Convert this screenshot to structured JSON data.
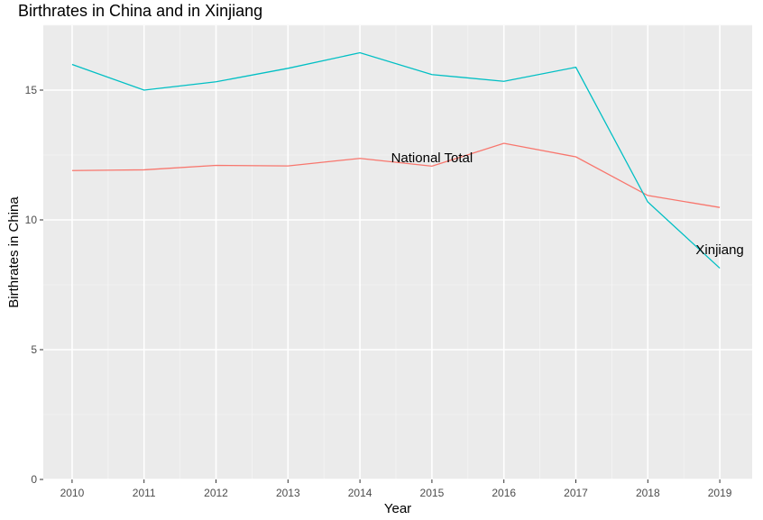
{
  "chart_data": {
    "type": "line",
    "title": "Birthrates in China and in Xinjiang",
    "xlabel": "Year",
    "ylabel": "Birthrates in China",
    "x": [
      2010,
      2011,
      2012,
      2013,
      2014,
      2015,
      2016,
      2017,
      2018,
      2019
    ],
    "xlim": [
      2009.6,
      2019.45
    ],
    "ylim": [
      0,
      17.5
    ],
    "y_ticks": [
      0,
      5,
      10,
      15
    ],
    "grid": true,
    "series": [
      {
        "name": "National Total",
        "color": "#F8766D",
        "values": [
          11.9,
          11.93,
          12.1,
          12.08,
          12.37,
          12.07,
          12.95,
          12.43,
          10.94,
          10.48
        ]
      },
      {
        "name": "Xinjiang",
        "color": "#00BFC4",
        "values": [
          15.99,
          15.0,
          15.32,
          15.84,
          16.44,
          15.6,
          15.34,
          15.88,
          10.69,
          8.14
        ]
      }
    ],
    "annotations": [
      {
        "text": "National Total",
        "x": 2015.0,
        "y": 12.4
      },
      {
        "text": "Xinjiang",
        "x": 2019.0,
        "y": 8.85
      }
    ]
  }
}
